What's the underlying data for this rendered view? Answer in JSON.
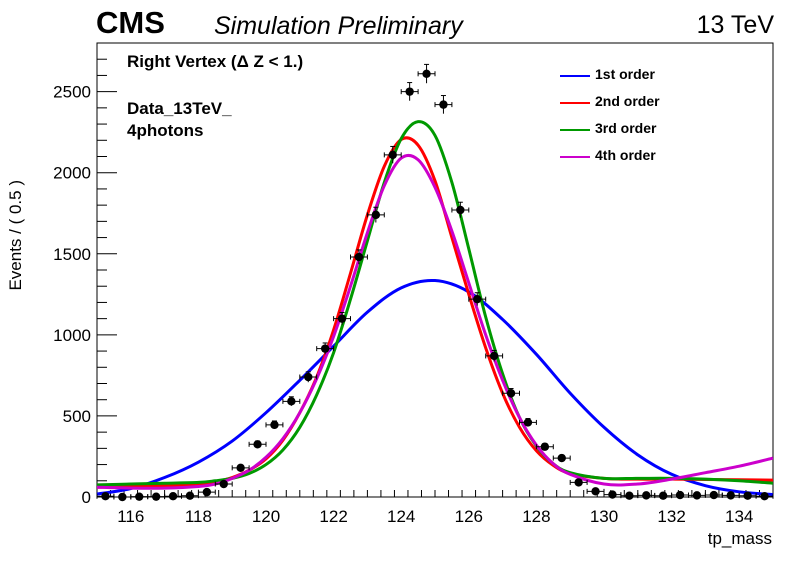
{
  "header": {
    "experiment": "CMS",
    "status": "Simulation Preliminary",
    "energy": "13 TeV"
  },
  "annotations": {
    "line1": "Right Vertex (Δ Z < 1.)",
    "line2a": "Data_13TeV_",
    "line2b": "4photons"
  },
  "chart_data": {
    "type": "scatter",
    "xlabel": "tp_mass",
    "ylabel": "Events / ( 0.5 )",
    "xlim": [
      115,
      135
    ],
    "ylim": [
      0,
      2800
    ],
    "xticks": [
      "116",
      "118",
      "120",
      "122",
      "124",
      "126",
      "128",
      "130",
      "132",
      "134"
    ],
    "yticks": [
      "0",
      "500",
      "1000",
      "1500",
      "2000",
      "2500"
    ],
    "legend_position": "top-right",
    "grid": false,
    "data_points": {
      "x_halfwidth": 0.25,
      "x": [
        115.25,
        115.75,
        116.25,
        116.75,
        117.25,
        117.75,
        118.25,
        118.75,
        119.25,
        119.75,
        120.25,
        120.75,
        121.25,
        121.75,
        122.25,
        122.75,
        123.25,
        123.75,
        124.25,
        124.75,
        125.25,
        125.75,
        126.25,
        126.75,
        127.25,
        127.75,
        128.25,
        128.75,
        129.25,
        129.75,
        130.25,
        130.75,
        131.25,
        131.75,
        132.25,
        132.75,
        133.25,
        133.75,
        134.25,
        134.75
      ],
      "y": [
        5,
        0,
        2,
        2,
        5,
        8,
        30,
        80,
        180,
        325,
        445,
        590,
        740,
        915,
        1100,
        1480,
        1740,
        2110,
        2500,
        2610,
        2420,
        1770,
        1220,
        870,
        640,
        460,
        310,
        240,
        90,
        35,
        15,
        8,
        10,
        8,
        12,
        10,
        12,
        10,
        8,
        5
      ],
      "y_err": [
        3,
        3,
        3,
        3,
        4,
        5,
        8,
        12,
        16,
        20,
        24,
        28,
        32,
        35,
        38,
        44,
        47,
        52,
        56,
        58,
        56,
        48,
        40,
        34,
        29,
        24,
        20,
        18,
        11,
        7,
        5,
        4,
        4,
        4,
        4,
        4,
        4,
        4,
        4,
        3
      ]
    },
    "series": [
      {
        "name": "1st order",
        "color": "#0000ff",
        "x": [
          115,
          116,
          117,
          118,
          119,
          120,
          121,
          122,
          123,
          124,
          125,
          126,
          127,
          128,
          129,
          130,
          131,
          132,
          133,
          134,
          135
        ],
        "y": [
          18,
          52,
          120,
          215,
          345,
          520,
          720,
          930,
          1140,
          1290,
          1335,
          1265,
          1095,
          880,
          640,
          430,
          260,
          140,
          70,
          32,
          15
        ]
      },
      {
        "name": "2nd order",
        "color": "#ff0000",
        "x": [
          115,
          116,
          117,
          118,
          118.5,
          119,
          119.5,
          120,
          120.5,
          121,
          121.5,
          122,
          122.5,
          123,
          123.5,
          124,
          124.5,
          125,
          125.5,
          126,
          126.5,
          127,
          127.5,
          128,
          128.5,
          129,
          130,
          131,
          132,
          133,
          134,
          135
        ],
        "y": [
          60,
          65,
          70,
          80,
          95,
          120,
          165,
          235,
          350,
          520,
          740,
          1030,
          1380,
          1740,
          2040,
          2205,
          2170,
          1950,
          1600,
          1250,
          920,
          640,
          430,
          285,
          195,
          145,
          115,
          110,
          110,
          108,
          106,
          104
        ]
      },
      {
        "name": "3rd order",
        "color": "#009900",
        "x": [
          115,
          116,
          117,
          118,
          118.5,
          119,
          119.5,
          120,
          120.5,
          121,
          121.5,
          122,
          122.5,
          123,
          123.5,
          124,
          124.5,
          125,
          125.5,
          126,
          126.5,
          127,
          127.5,
          128,
          128.5,
          129,
          130,
          131,
          132,
          133,
          134,
          135
        ],
        "y": [
          75,
          80,
          85,
          90,
          100,
          115,
          145,
          200,
          290,
          430,
          630,
          890,
          1220,
          1580,
          1940,
          2210,
          2315,
          2230,
          1940,
          1530,
          1110,
          760,
          490,
          315,
          205,
          150,
          115,
          115,
          115,
          110,
          100,
          85
        ]
      },
      {
        "name": "4th order",
        "color": "#cc00cc",
        "x": [
          115,
          116,
          117,
          118,
          118.5,
          119,
          119.5,
          120,
          120.5,
          121,
          121.5,
          122,
          122.5,
          123,
          123.5,
          124,
          124.5,
          125,
          125.5,
          126,
          126.5,
          127,
          127.5,
          128,
          128.5,
          129,
          130,
          131,
          132,
          133,
          134,
          135
        ],
        "y": [
          60,
          55,
          55,
          65,
          80,
          115,
          165,
          245,
          360,
          520,
          730,
          990,
          1300,
          1630,
          1920,
          2090,
          2080,
          1910,
          1640,
          1320,
          1000,
          720,
          490,
          320,
          205,
          140,
          80,
          80,
          110,
          150,
          190,
          240
        ]
      }
    ]
  }
}
